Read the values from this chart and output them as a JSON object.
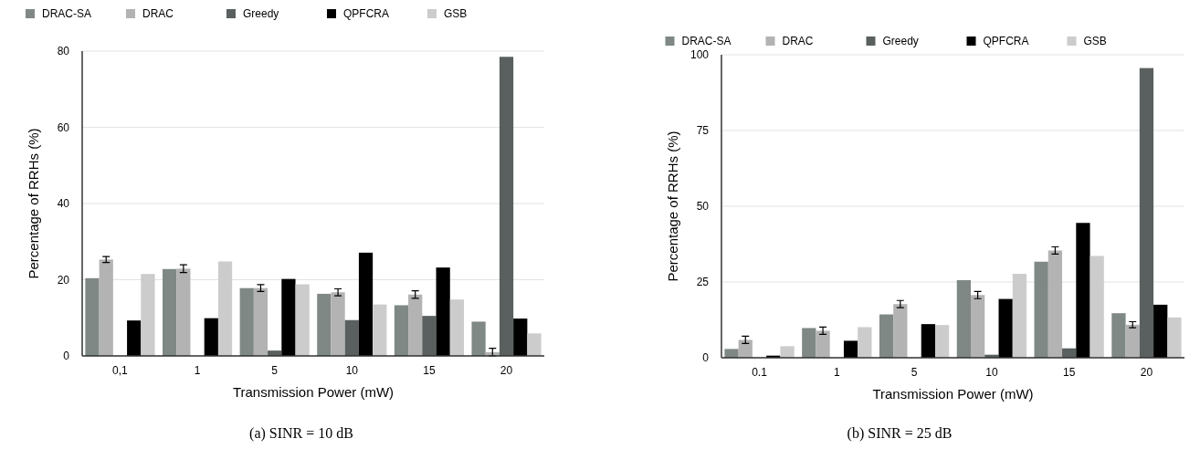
{
  "chart_data": [
    {
      "type": "bar",
      "categories": [
        "0,1",
        "1",
        "5",
        "10",
        "15",
        "20"
      ],
      "xlabel": "Transmission Power (mW)",
      "ylabel": "Percentage of RRHs (%)",
      "ylim": [
        0,
        80
      ],
      "yticks": [
        0,
        20,
        40,
        60,
        80
      ],
      "grid": "y",
      "legend": "top",
      "annotations": [
        "(a) SINR = 10 dB"
      ],
      "series": [
        {
          "name": "DRAC-SA",
          "color": "#7f8884",
          "values": [
            20.4,
            22.8,
            17.8,
            16.3,
            13.3,
            9.0
          ]
        },
        {
          "name": "DRAC",
          "color": "#b3b3b3",
          "values": [
            25.3,
            22.9,
            17.8,
            16.7,
            16.1,
            1.0
          ],
          "errors": [
            0.8,
            1,
            0.9,
            0.9,
            1,
            1
          ]
        },
        {
          "name": "Greedy",
          "color": "#5a605f",
          "values": [
            0,
            0,
            1.4,
            9.4,
            10.5,
            78.5
          ]
        },
        {
          "name": "QPFCRA",
          "color": "#000000",
          "values": [
            9.3,
            9.9,
            20.2,
            27.1,
            23.2,
            9.8
          ]
        },
        {
          "name": "GSB",
          "color": "#cccccc",
          "values": [
            21.5,
            24.8,
            18.8,
            13.5,
            14.8,
            5.9
          ]
        }
      ]
    },
    {
      "type": "bar",
      "categories": [
        "0.1",
        "1",
        "5",
        "10",
        "15",
        "20"
      ],
      "xlabel": "Transmission Power (mW)",
      "ylabel": "Percentage of RRHs (%)",
      "ylim": [
        0,
        100
      ],
      "yticks": [
        0,
        25,
        50,
        75,
        100
      ],
      "grid": "y",
      "legend": "top",
      "annotations": [
        "(b) SINR = 25 dB"
      ],
      "series": [
        {
          "name": "DRAC-SA",
          "color": "#7f8884",
          "values": [
            2.9,
            9.8,
            14.3,
            25.6,
            31.7,
            14.7
          ]
        },
        {
          "name": "DRAC",
          "color": "#b3b3b3",
          "values": [
            5.9,
            8.9,
            17.7,
            20.7,
            35.4,
            10.9
          ],
          "errors": [
            1.2,
            1.2,
            1.2,
            1.2,
            1.2,
            1
          ]
        },
        {
          "name": "Greedy",
          "color": "#5a605f",
          "values": [
            0,
            0,
            0,
            1.0,
            3.1,
            95.6
          ]
        },
        {
          "name": "QPFCRA",
          "color": "#000000",
          "values": [
            0.7,
            5.6,
            11.1,
            19.4,
            44.5,
            17.5
          ]
        },
        {
          "name": "GSB",
          "color": "#cccccc",
          "values": [
            3.8,
            10.1,
            10.8,
            27.7,
            33.6,
            13.3
          ]
        }
      ]
    }
  ]
}
